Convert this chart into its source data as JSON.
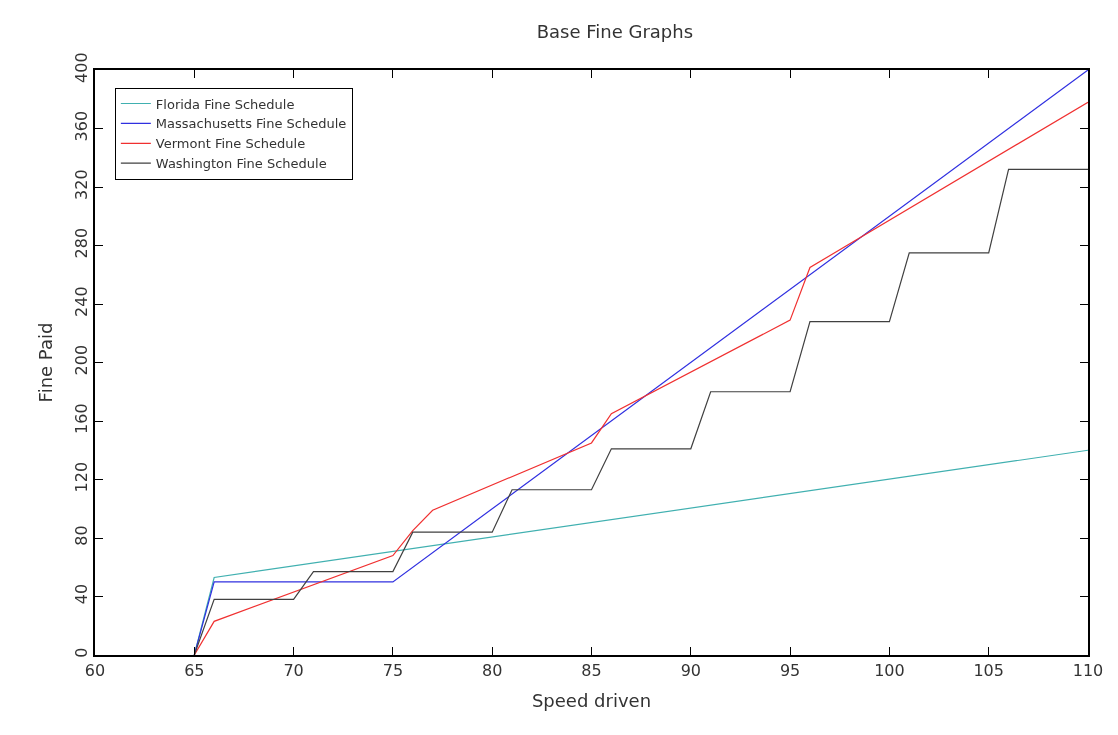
{
  "chart_data": {
    "type": "line",
    "title": "Base Fine Graphs",
    "xlabel": "Speed driven",
    "ylabel": "Fine Paid",
    "xlim": [
      60,
      110
    ],
    "xticks": [
      60,
      65,
      70,
      75,
      80,
      85,
      90,
      95,
      100,
      105,
      110
    ],
    "ylim": [
      0,
      400
    ],
    "yticks": [
      0,
      40,
      80,
      120,
      160,
      200,
      240,
      280,
      320,
      360,
      400
    ],
    "legend": "top left",
    "marker": "none",
    "line_style": "solid",
    "series": [
      {
        "name": "Florida Fine Schedule",
        "color": "#40b0b0",
        "x": [
          65,
          66,
          110
        ],
        "values": [
          0,
          53,
          140
        ]
      },
      {
        "name": "Massachusetts Fine Schedule",
        "color": "#3030e0",
        "x": [
          65,
          66,
          75,
          110
        ],
        "values": [
          0,
          50,
          50,
          400
        ]
      },
      {
        "name": "Vermont Fine Schedule",
        "color": "#f03030",
        "x": [
          65,
          66,
          75,
          76,
          77,
          85,
          86,
          95,
          96,
          110
        ],
        "values": [
          0,
          23,
          68,
          85,
          99,
          145,
          165,
          229,
          265,
          378
        ]
      },
      {
        "name": "Washington Fine Schedule",
        "color": "#404040",
        "x": [
          65,
          66,
          70,
          71,
          75,
          76,
          80,
          81,
          85,
          86,
          90,
          91,
          95,
          96,
          100,
          101,
          105,
          106,
          110
        ],
        "values": [
          0,
          38,
          38,
          57,
          57,
          84,
          84,
          113,
          113,
          141,
          141,
          180,
          180,
          228,
          228,
          275,
          275,
          332,
          332
        ]
      }
    ]
  }
}
